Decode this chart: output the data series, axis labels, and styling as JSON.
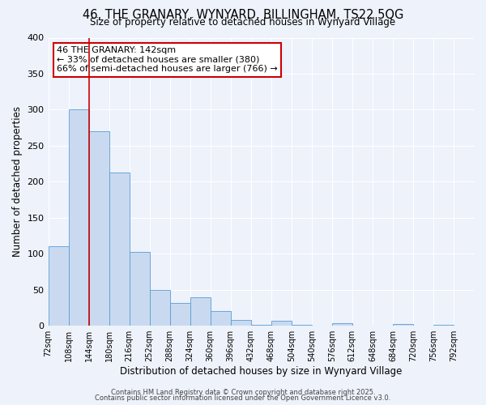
{
  "title": "46, THE GRANARY, WYNYARD, BILLINGHAM, TS22 5QG",
  "subtitle": "Size of property relative to detached houses in Wynyard Village",
  "xlabel": "Distribution of detached houses by size in Wynyard Village",
  "ylabel": "Number of detached properties",
  "bin_edges": [
    72,
    108,
    144,
    180,
    216,
    252,
    288,
    324,
    360,
    396,
    432,
    468,
    504,
    540,
    576,
    612,
    648,
    684,
    720,
    756,
    792
  ],
  "bar_heights": [
    110,
    300,
    270,
    213,
    102,
    50,
    32,
    40,
    20,
    8,
    1,
    7,
    1,
    0,
    4,
    0,
    0,
    2,
    0,
    1
  ],
  "bar_color": "#c9daf0",
  "bar_edge_color": "#5b9bd5",
  "vline_x": 144,
  "vline_color": "#cc0000",
  "ylim": [
    0,
    400
  ],
  "yticks": [
    0,
    50,
    100,
    150,
    200,
    250,
    300,
    350,
    400
  ],
  "bg_color": "#edf2fb",
  "annotation_title": "46 THE GRANARY: 142sqm",
  "annotation_line1": "← 33% of detached houses are smaller (380)",
  "annotation_line2": "66% of semi-detached houses are larger (766) →",
  "annotation_box_color": "#ffffff",
  "annotation_box_edge": "#cc0000",
  "footer1": "Contains HM Land Registry data © Crown copyright and database right 2025.",
  "footer2": "Contains public sector information licensed under the Open Government Licence v3.0.",
  "tick_labels": [
    "72sqm",
    "108sqm",
    "144sqm",
    "180sqm",
    "216sqm",
    "252sqm",
    "288sqm",
    "324sqm",
    "360sqm",
    "396sqm",
    "432sqm",
    "468sqm",
    "504sqm",
    "540sqm",
    "576sqm",
    "612sqm",
    "648sqm",
    "684sqm",
    "720sqm",
    "756sqm",
    "792sqm"
  ]
}
